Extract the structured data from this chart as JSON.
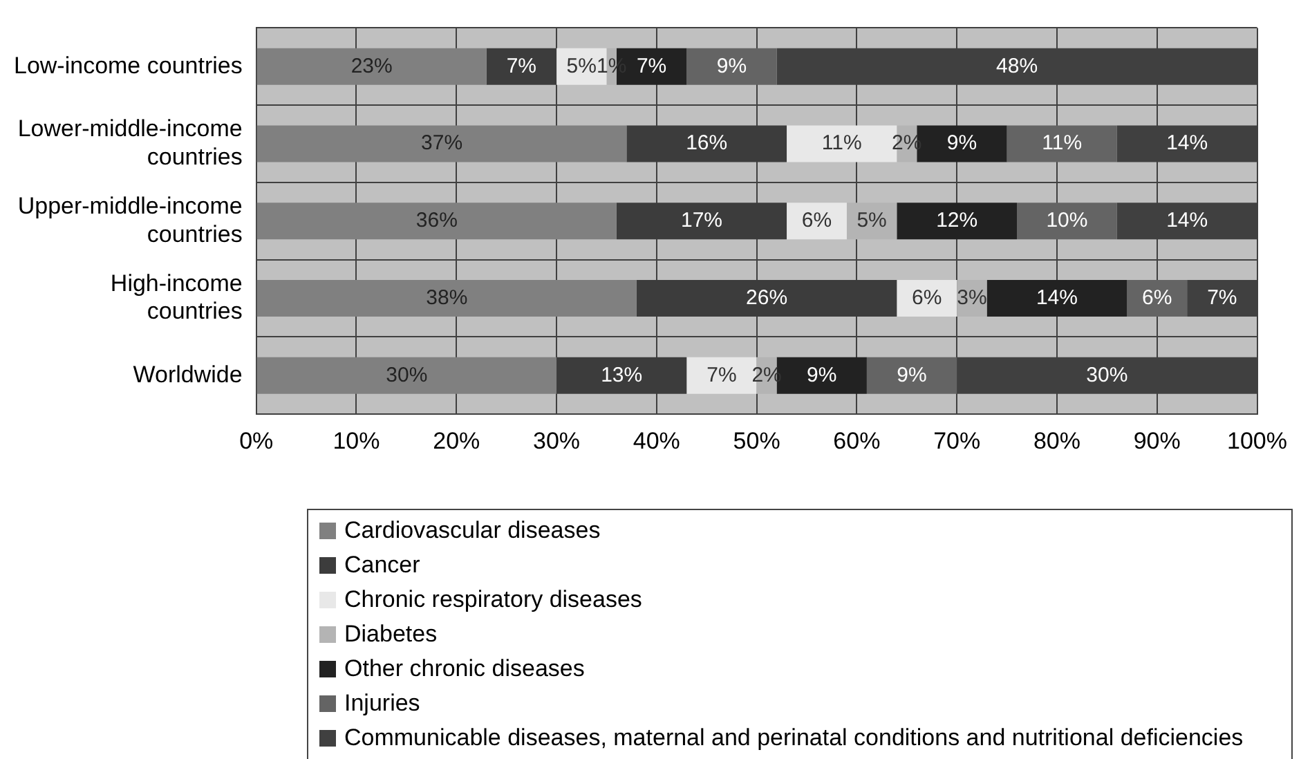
{
  "chart_data": {
    "type": "bar",
    "orientation": "horizontal",
    "stacked": true,
    "categories": [
      "Low-income countries",
      "Lower-middle-income countries",
      "Upper-middle-income countries",
      "High-income countries",
      "Worldwide"
    ],
    "series": [
      {
        "name": "Cardiovascular diseases",
        "color": "#808080",
        "values": [
          23,
          37,
          36,
          38,
          30
        ],
        "value_labels": [
          "23%",
          "37%",
          "36%",
          "38%",
          "30%"
        ]
      },
      {
        "name": "Cancer",
        "color": "#3c3c3c",
        "values": [
          7,
          16,
          17,
          26,
          13
        ],
        "value_labels": [
          "7%",
          "16%",
          "17%",
          "26%",
          "13%"
        ]
      },
      {
        "name": "Chronic respiratory diseases",
        "color": "#e8e8e8",
        "values": [
          5,
          11,
          6,
          6,
          7
        ],
        "value_labels": [
          "5%",
          "11%",
          "6%",
          "6%",
          "7%"
        ]
      },
      {
        "name": "Diabetes",
        "color": "#b4b4b4",
        "values": [
          1,
          2,
          5,
          3,
          2
        ],
        "value_labels": [
          "1%",
          "2%",
          "5%",
          "3%",
          "2%"
        ]
      },
      {
        "name": "Other chronic diseases",
        "color": "#222222",
        "values": [
          7,
          9,
          12,
          14,
          9
        ],
        "value_labels": [
          "7%",
          "9%",
          "12%",
          "14%",
          "9%"
        ]
      },
      {
        "name": "Injuries",
        "color": "#646464",
        "values": [
          9,
          11,
          10,
          6,
          9
        ],
        "value_labels": [
          "9%",
          "11%",
          "10%",
          "6%",
          "9%"
        ]
      },
      {
        "name": "Communicable diseases, maternal and perinatal conditions and nutritional deficiencies",
        "color": "#404040",
        "values": [
          48,
          14,
          14,
          7,
          30
        ],
        "value_labels": [
          "48%",
          "14%",
          "14%",
          "7%",
          "30%"
        ]
      }
    ],
    "xlim": [
      0,
      100
    ],
    "xticks": [
      {
        "value": 0,
        "label": "0%"
      },
      {
        "value": 10,
        "label": "10%"
      },
      {
        "value": 20,
        "label": "20%"
      },
      {
        "value": 30,
        "label": "30%"
      },
      {
        "value": 40,
        "label": "40%"
      },
      {
        "value": 50,
        "label": "50%"
      },
      {
        "value": 60,
        "label": "60%"
      },
      {
        "value": 70,
        "label": "70%"
      },
      {
        "value": 80,
        "label": "80%"
      },
      {
        "value": 90,
        "label": "90%"
      },
      {
        "value": 100,
        "label": "100%"
      }
    ],
    "grid": true,
    "legend": "bottom"
  }
}
